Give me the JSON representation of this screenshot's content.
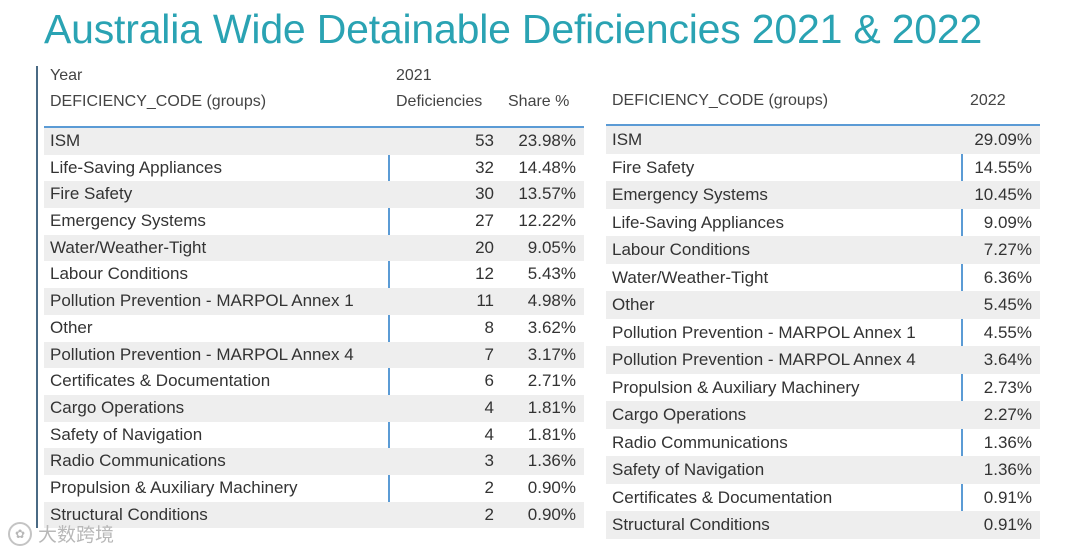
{
  "title": "Australia Wide Detainable Deficiencies 2021 & 2022",
  "left_table": {
    "headers": {
      "year": "Year",
      "year_value": "2021",
      "code": "DEFICIENCY_CODE (groups)",
      "deficiencies": "Deficiencies",
      "share": "Share %"
    },
    "rows": [
      {
        "name": "ISM",
        "count": "53",
        "share": "23.98%"
      },
      {
        "name": "Life-Saving Appliances",
        "count": "32",
        "share": "14.48%"
      },
      {
        "name": "Fire Safety",
        "count": "30",
        "share": "13.57%"
      },
      {
        "name": "Emergency Systems",
        "count": "27",
        "share": "12.22%"
      },
      {
        "name": "Water/Weather-Tight",
        "count": "20",
        "share": "9.05%"
      },
      {
        "name": "Labour Conditions",
        "count": "12",
        "share": "5.43%"
      },
      {
        "name": "Pollution Prevention - MARPOL Annex 1",
        "count": "11",
        "share": "4.98%"
      },
      {
        "name": "Other",
        "count": "8",
        "share": "3.62%"
      },
      {
        "name": "Pollution Prevention - MARPOL Annex 4",
        "count": "7",
        "share": "3.17%"
      },
      {
        "name": "Certificates & Documentation",
        "count": "6",
        "share": "2.71%"
      },
      {
        "name": "Cargo Operations",
        "count": "4",
        "share": "1.81%"
      },
      {
        "name": "Safety of Navigation",
        "count": "4",
        "share": "1.81%"
      },
      {
        "name": "Radio Communications",
        "count": "3",
        "share": "1.36%"
      },
      {
        "name": "Propulsion & Auxiliary Machinery",
        "count": "2",
        "share": "0.90%"
      },
      {
        "name": "Structural Conditions",
        "count": "2",
        "share": "0.90%"
      }
    ]
  },
  "right_table": {
    "headers": {
      "code": "DEFICIENCY_CODE (groups)",
      "year": "2022"
    },
    "rows": [
      {
        "name": "ISM",
        "share": "29.09%"
      },
      {
        "name": "Fire Safety",
        "share": "14.55%"
      },
      {
        "name": "Emergency Systems",
        "share": "10.45%"
      },
      {
        "name": "Life-Saving Appliances",
        "share": "9.09%"
      },
      {
        "name": "Labour Conditions",
        "share": "7.27%"
      },
      {
        "name": "Water/Weather-Tight",
        "share": "6.36%"
      },
      {
        "name": "Other",
        "share": "5.45%"
      },
      {
        "name": "Pollution Prevention - MARPOL Annex 1",
        "share": "4.55%"
      },
      {
        "name": "Pollution Prevention - MARPOL Annex 4",
        "share": "3.64%"
      },
      {
        "name": "Propulsion & Auxiliary Machinery",
        "share": "2.73%"
      },
      {
        "name": "Cargo Operations",
        "share": "2.27%"
      },
      {
        "name": "Radio Communications",
        "share": "1.36%"
      },
      {
        "name": "Safety of Navigation",
        "share": "1.36%"
      },
      {
        "name": "Certificates & Documentation",
        "share": "0.91%"
      },
      {
        "name": "Structural Conditions",
        "share": "0.91%"
      }
    ]
  },
  "watermark": {
    "text": "大数跨境",
    "icon": "logo-icon"
  },
  "colors": {
    "title": "#2aa3b3",
    "rule": "#5b9bd5",
    "shade": "#eeeeee"
  }
}
